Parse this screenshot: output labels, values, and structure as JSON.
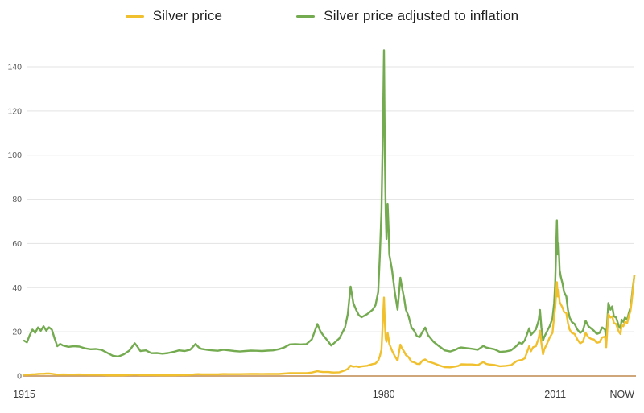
{
  "legend": {
    "items": [
      {
        "label": "Silver price",
        "color": "#f0c02e"
      },
      {
        "label": "Silver price adjusted to inflation",
        "color": "#74ab50"
      }
    ]
  },
  "colors": {
    "silver": "#f0c02e",
    "adjusted": "#74ab50",
    "gridline": "#e3e3e3",
    "axis_line": "#c89a66",
    "y_tick_color": "#595959",
    "x_tick_color": "#3b3b3b",
    "background": "#ffffff"
  },
  "axes": {
    "y_ticks": [
      0,
      20,
      40,
      60,
      80,
      100,
      120,
      140
    ],
    "x_ticks": [
      {
        "label": "1915",
        "year": 1915,
        "align": "center"
      },
      {
        "label": "1980",
        "year": 1980,
        "align": "center"
      },
      {
        "label": "2011",
        "year": 2011,
        "align": "center"
      },
      {
        "label": "NOW",
        "year": 2025.3,
        "align": "end"
      }
    ]
  },
  "chart_data": {
    "type": "line",
    "x_unit": "year",
    "xlim": [
      1915,
      2025.3
    ],
    "ylim": [
      0,
      140
    ],
    "grid": "horizontal",
    "legend_position": "top",
    "columns": [
      "year",
      "silver_price_usd",
      "silver_price_adjusted_to_inflation_usd"
    ],
    "series": [
      {
        "id": "silver-price",
        "name": "Silver price",
        "color": "#f0c02e",
        "column": 1
      },
      {
        "id": "silver-price-adjusted",
        "name": "Silver price adjusted to inflation",
        "color": "#74ab50",
        "column": 2
      }
    ],
    "points": [
      [
        1915,
        0.5,
        16.0
      ],
      [
        1915.5,
        0.52,
        15.2
      ],
      [
        1916,
        0.66,
        18.5
      ],
      [
        1916.5,
        0.76,
        21.0
      ],
      [
        1917,
        0.8,
        19.5
      ],
      [
        1917.5,
        0.9,
        22.0
      ],
      [
        1918,
        0.97,
        20.5
      ],
      [
        1918.5,
        1.0,
        22.5
      ],
      [
        1919,
        1.11,
        20.5
      ],
      [
        1919.5,
        1.12,
        22.0
      ],
      [
        1920,
        1.0,
        21.0
      ],
      [
        1920.5,
        0.8,
        17.0
      ],
      [
        1921,
        0.63,
        13.5
      ],
      [
        1921.5,
        0.65,
        14.5
      ],
      [
        1922,
        0.68,
        13.8
      ],
      [
        1923,
        0.65,
        13.2
      ],
      [
        1924,
        0.67,
        13.5
      ],
      [
        1925,
        0.69,
        13.3
      ],
      [
        1926,
        0.62,
        12.5
      ],
      [
        1927,
        0.57,
        12.1
      ],
      [
        1928,
        0.58,
        12.2
      ],
      [
        1929,
        0.53,
        11.8
      ],
      [
        1930,
        0.38,
        10.5
      ],
      [
        1931,
        0.29,
        9.2
      ],
      [
        1932,
        0.28,
        8.8
      ],
      [
        1933,
        0.35,
        9.8
      ],
      [
        1934,
        0.48,
        11.5
      ],
      [
        1935,
        0.64,
        14.8
      ],
      [
        1935.5,
        0.6,
        13.2
      ],
      [
        1936,
        0.45,
        11.3
      ],
      [
        1937,
        0.45,
        11.6
      ],
      [
        1938,
        0.43,
        10.3
      ],
      [
        1939,
        0.39,
        10.4
      ],
      [
        1940,
        0.35,
        10.1
      ],
      [
        1941,
        0.35,
        10.4
      ],
      [
        1942,
        0.38,
        10.9
      ],
      [
        1943,
        0.45,
        11.6
      ],
      [
        1944,
        0.44,
        11.3
      ],
      [
        1945,
        0.52,
        11.9
      ],
      [
        1946,
        0.8,
        14.5
      ],
      [
        1946.5,
        0.85,
        13.1
      ],
      [
        1947,
        0.72,
        12.3
      ],
      [
        1948,
        0.74,
        11.9
      ],
      [
        1949,
        0.72,
        11.6
      ],
      [
        1950,
        0.74,
        11.4
      ],
      [
        1951,
        0.89,
        11.9
      ],
      [
        1952,
        0.85,
        11.6
      ],
      [
        1953,
        0.85,
        11.3
      ],
      [
        1954,
        0.85,
        11.1
      ],
      [
        1955,
        0.89,
        11.3
      ],
      [
        1956,
        0.91,
        11.5
      ],
      [
        1957,
        0.91,
        11.4
      ],
      [
        1958,
        0.89,
        11.3
      ],
      [
        1959,
        0.91,
        11.5
      ],
      [
        1960,
        0.91,
        11.6
      ],
      [
        1961,
        0.92,
        12.1
      ],
      [
        1962,
        1.08,
        12.9
      ],
      [
        1963,
        1.28,
        14.3
      ],
      [
        1964,
        1.29,
        14.4
      ],
      [
        1965,
        1.29,
        14.3
      ],
      [
        1966,
        1.29,
        14.4
      ],
      [
        1967,
        1.55,
        16.6
      ],
      [
        1968,
        2.14,
        23.5
      ],
      [
        1968.5,
        1.95,
        20.5
      ],
      [
        1969,
        1.79,
        18.6
      ],
      [
        1970,
        1.77,
        15.5
      ],
      [
        1970.5,
        1.63,
        13.8
      ],
      [
        1971,
        1.55,
        14.8
      ],
      [
        1972,
        1.68,
        17.1
      ],
      [
        1973,
        2.56,
        22.0
      ],
      [
        1973.5,
        3.2,
        28.0
      ],
      [
        1974,
        4.7,
        40.5
      ],
      [
        1974.5,
        4.2,
        33.0
      ],
      [
        1975,
        4.4,
        30.0
      ],
      [
        1975.5,
        4.1,
        27.5
      ],
      [
        1976,
        4.35,
        26.6
      ],
      [
        1977,
        4.62,
        28.0
      ],
      [
        1978,
        5.4,
        30.0
      ],
      [
        1978.5,
        5.6,
        32.0
      ],
      [
        1979,
        7.0,
        38.0
      ],
      [
        1979.3,
        9.0,
        55.0
      ],
      [
        1979.6,
        12.0,
        75.0
      ],
      [
        1979.9,
        28.0,
        120.0
      ],
      [
        1980.05,
        35.5,
        147.5
      ],
      [
        1980.2,
        24.0,
        100.0
      ],
      [
        1980.35,
        17.0,
        75.0
      ],
      [
        1980.5,
        15.5,
        62.0
      ],
      [
        1980.7,
        19.5,
        78.0
      ],
      [
        1980.9,
        16.5,
        65.0
      ],
      [
        1981,
        14.5,
        55.0
      ],
      [
        1981.5,
        11.5,
        48.0
      ],
      [
        1982,
        9.0,
        38.0
      ],
      [
        1982.5,
        7.0,
        30.0
      ],
      [
        1983,
        14.2,
        44.5
      ],
      [
        1983.3,
        12.5,
        40.0
      ],
      [
        1983.7,
        11.0,
        35.0
      ],
      [
        1984,
        9.5,
        30.0
      ],
      [
        1984.5,
        8.5,
        27.0
      ],
      [
        1985,
        6.5,
        22.0
      ],
      [
        1985.5,
        6.2,
        20.5
      ],
      [
        1986,
        5.5,
        18.0
      ],
      [
        1986.5,
        5.4,
        17.6
      ],
      [
        1987,
        7.0,
        20.0
      ],
      [
        1987.5,
        7.5,
        21.9
      ],
      [
        1988,
        6.5,
        18.5
      ],
      [
        1988.5,
        6.2,
        17.0
      ],
      [
        1989,
        5.8,
        15.5
      ],
      [
        1990,
        4.8,
        13.5
      ],
      [
        1990.5,
        4.4,
        12.6
      ],
      [
        1991,
        4.0,
        11.6
      ],
      [
        1992,
        3.9,
        11.1
      ],
      [
        1993,
        4.3,
        11.9
      ],
      [
        1993.5,
        4.6,
        12.6
      ],
      [
        1994,
        5.3,
        12.9
      ],
      [
        1995,
        5.2,
        12.6
      ],
      [
        1996,
        5.2,
        12.3
      ],
      [
        1997,
        4.9,
        11.9
      ],
      [
        1998,
        6.3,
        13.6
      ],
      [
        1998.5,
        5.5,
        12.9
      ],
      [
        1999,
        5.2,
        12.6
      ],
      [
        2000,
        5.0,
        12.1
      ],
      [
        2001,
        4.4,
        10.9
      ],
      [
        2002,
        4.6,
        11.1
      ],
      [
        2003,
        4.9,
        11.6
      ],
      [
        2004,
        6.7,
        13.6
      ],
      [
        2004.5,
        7.1,
        15.1
      ],
      [
        2005,
        7.3,
        14.6
      ],
      [
        2005.5,
        8.0,
        16.1
      ],
      [
        2006,
        11.5,
        19.6
      ],
      [
        2006.3,
        13.5,
        21.6
      ],
      [
        2006.6,
        11.2,
        18.6
      ],
      [
        2007,
        13.0,
        19.6
      ],
      [
        2007.5,
        13.5,
        21.1
      ],
      [
        2008,
        17.0,
        25.1
      ],
      [
        2008.25,
        20.5,
        29.9
      ],
      [
        2008.5,
        15.0,
        22.1
      ],
      [
        2008.8,
        9.8,
        16.1
      ],
      [
        2009,
        12.0,
        17.6
      ],
      [
        2009.5,
        14.5,
        20.1
      ],
      [
        2010,
        17.5,
        22.6
      ],
      [
        2010.5,
        19.5,
        26.1
      ],
      [
        2010.8,
        27.0,
        33.1
      ],
      [
        2011,
        31.0,
        42.1
      ],
      [
        2011.3,
        42.5,
        70.5
      ],
      [
        2011.45,
        36.0,
        55.0
      ],
      [
        2011.6,
        39.0,
        60.0
      ],
      [
        2011.8,
        33.5,
        48.0
      ],
      [
        2012,
        32.5,
        45.0
      ],
      [
        2012.3,
        31.0,
        42.0
      ],
      [
        2012.6,
        29.0,
        38.0
      ],
      [
        2013,
        28.5,
        36.0
      ],
      [
        2013.3,
        24.0,
        30.0
      ],
      [
        2013.6,
        21.0,
        26.5
      ],
      [
        2014,
        19.5,
        24.5
      ],
      [
        2014.5,
        19.0,
        23.5
      ],
      [
        2015,
        16.5,
        21.0
      ],
      [
        2015.5,
        14.8,
        19.5
      ],
      [
        2016,
        15.5,
        20.5
      ],
      [
        2016.5,
        19.5,
        25.0
      ],
      [
        2017,
        17.5,
        22.5
      ],
      [
        2017.5,
        16.8,
        21.5
      ],
      [
        2018,
        16.5,
        20.5
      ],
      [
        2018.5,
        15.0,
        19.0
      ],
      [
        2019,
        15.3,
        19.5
      ],
      [
        2019.5,
        17.5,
        22.0
      ],
      [
        2020,
        17.8,
        21.0
      ],
      [
        2020.2,
        13.0,
        16.5
      ],
      [
        2020.6,
        28.0,
        33.0
      ],
      [
        2021,
        26.5,
        30.0
      ],
      [
        2021.3,
        27.0,
        31.5
      ],
      [
        2021.6,
        24.0,
        27.0
      ],
      [
        2022,
        23.5,
        26.5
      ],
      [
        2022.5,
        20.0,
        22.5
      ],
      [
        2022.8,
        19.0,
        21.5
      ],
      [
        2023,
        23.0,
        25.5
      ],
      [
        2023.3,
        22.5,
        24.5
      ],
      [
        2023.6,
        24.5,
        26.5
      ],
      [
        2024,
        24.0,
        25.5
      ],
      [
        2024.3,
        27.0,
        28.5
      ],
      [
        2024.6,
        29.5,
        31.0
      ],
      [
        2024.8,
        33.5,
        35.0
      ],
      [
        2025,
        38.0,
        39.5
      ],
      [
        2025.3,
        45.5,
        45.5
      ]
    ]
  }
}
